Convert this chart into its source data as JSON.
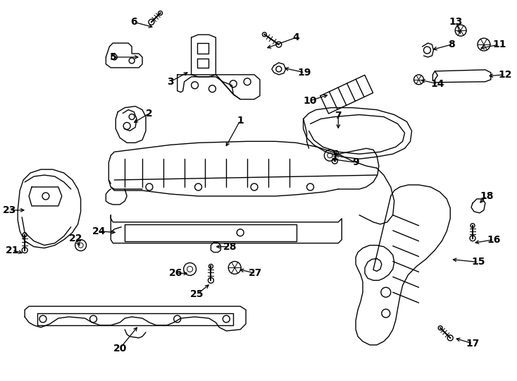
{
  "background_color": "#ffffff",
  "line_color": "#000000",
  "label_fontsize": 10,
  "label_fontweight": "bold",
  "figsize": [
    7.34,
    5.4
  ],
  "dpi": 100
}
